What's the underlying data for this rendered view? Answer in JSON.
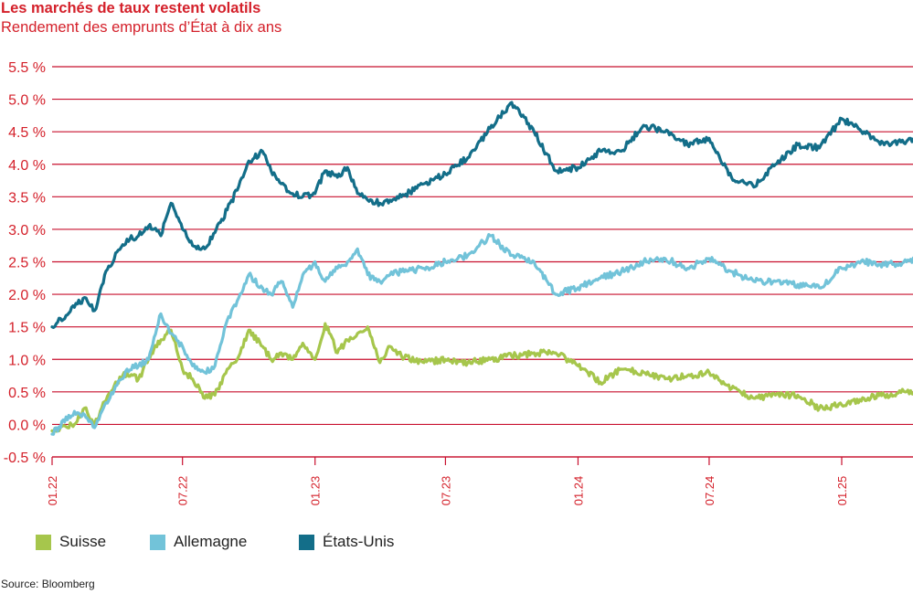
{
  "header": {
    "title": "Les marchés de taux restent volatils",
    "subtitle": "Rendement des emprunts d’État à dix ans"
  },
  "footer": {
    "source": "Source: Bloomberg"
  },
  "colors": {
    "accent": "#d4202a",
    "grid": "#c8102e",
    "suisse": "#a6c64c",
    "allemagne": "#72c3d9",
    "etats_unis": "#136e89"
  },
  "legend": [
    {
      "label": "Suisse",
      "color": "#a6c64c"
    },
    {
      "label": "Allemagne",
      "color": "#72c3d9"
    },
    {
      "label": "États-Unis",
      "color": "#136e89"
    }
  ],
  "chart_data": {
    "type": "line",
    "title": "Les marchés de taux restent volatils",
    "subtitle": "Rendement des emprunts d’État à dix ans",
    "ylabel": "",
    "xlabel": "",
    "ylim": [
      -0.5,
      5.5
    ],
    "xlim": [
      "2022-01-01",
      "2025-07-15"
    ],
    "yticks": [
      "5.5 %",
      "5.0 %",
      "4.5 %",
      "4.0 %",
      "3.5 %",
      "3.0 %",
      "2.5 %",
      "2.0 %",
      "1.5 %",
      "1.0 %",
      "0.5 %",
      "0.0 %",
      "-0.5 %"
    ],
    "ytick_values": [
      5.5,
      5.0,
      4.5,
      4.0,
      3.5,
      3.0,
      2.5,
      2.0,
      1.5,
      1.0,
      0.5,
      0.0,
      -0.5
    ],
    "xticks": [
      "01.22",
      "07.22",
      "01.23",
      "07.23",
      "01.24",
      "07.24",
      "01.25"
    ],
    "xtick_dates": [
      "2022-01-01",
      "2022-07-01",
      "2023-01-01",
      "2023-07-01",
      "2024-01-01",
      "2024-07-01",
      "2025-01-01"
    ],
    "grid": true,
    "legend_position": "bottom",
    "series": [
      {
        "name": "Suisse",
        "color": "#a6c64c",
        "x": [
          "2022-01-01",
          "2022-02-01",
          "2022-02-15",
          "2022-03-01",
          "2022-03-15",
          "2022-04-01",
          "2022-04-15",
          "2022-05-01",
          "2022-05-15",
          "2022-06-01",
          "2022-06-15",
          "2022-07-01",
          "2022-07-15",
          "2022-08-01",
          "2022-08-15",
          "2022-09-01",
          "2022-09-15",
          "2022-10-01",
          "2022-10-20",
          "2022-11-01",
          "2022-11-15",
          "2022-12-01",
          "2022-12-15",
          "2023-01-01",
          "2023-01-15",
          "2023-02-01",
          "2023-02-15",
          "2023-03-01",
          "2023-03-15",
          "2023-04-01",
          "2023-04-15",
          "2023-05-01",
          "2023-06-01",
          "2023-07-01",
          "2023-08-01",
          "2023-09-01",
          "2023-10-01",
          "2023-11-01",
          "2023-12-01",
          "2024-01-01",
          "2024-02-01",
          "2024-03-01",
          "2024-04-01",
          "2024-05-01",
          "2024-06-01",
          "2024-07-01",
          "2024-08-01",
          "2024-09-01",
          "2024-10-01",
          "2024-11-01",
          "2024-12-01",
          "2025-01-01",
          "2025-02-01",
          "2025-03-01",
          "2025-04-01",
          "2025-05-01",
          "2025-06-01",
          "2025-07-15"
        ],
        "values": [
          -0.1,
          0.0,
          0.25,
          0.0,
          0.35,
          0.65,
          0.8,
          0.7,
          1.0,
          1.3,
          1.45,
          0.85,
          0.7,
          0.4,
          0.45,
          0.85,
          1.0,
          1.45,
          1.2,
          1.0,
          1.1,
          1.0,
          1.25,
          1.0,
          1.55,
          1.1,
          1.3,
          1.4,
          1.5,
          0.95,
          1.2,
          1.05,
          0.95,
          1.0,
          0.95,
          1.0,
          1.05,
          1.1,
          1.1,
          0.9,
          0.65,
          0.85,
          0.8,
          0.7,
          0.75,
          0.8,
          0.55,
          0.4,
          0.45,
          0.45,
          0.25,
          0.3,
          0.4,
          0.45,
          0.5,
          0.45,
          0.75,
          0.6
        ]
      },
      {
        "name": "Allemagne",
        "color": "#72c3d9",
        "x": [
          "2022-01-01",
          "2022-02-01",
          "2022-02-15",
          "2022-03-01",
          "2022-03-15",
          "2022-04-01",
          "2022-04-15",
          "2022-05-01",
          "2022-05-15",
          "2022-06-01",
          "2022-06-15",
          "2022-07-01",
          "2022-07-15",
          "2022-08-01",
          "2022-08-15",
          "2022-09-01",
          "2022-09-15",
          "2022-10-01",
          "2022-10-20",
          "2022-11-01",
          "2022-11-15",
          "2022-12-01",
          "2022-12-15",
          "2023-01-01",
          "2023-01-15",
          "2023-02-01",
          "2023-02-15",
          "2023-03-01",
          "2023-03-15",
          "2023-04-01",
          "2023-04-15",
          "2023-05-01",
          "2023-06-01",
          "2023-07-01",
          "2023-08-01",
          "2023-09-01",
          "2023-10-01",
          "2023-11-01",
          "2023-12-01",
          "2024-01-01",
          "2024-02-01",
          "2024-03-01",
          "2024-04-01",
          "2024-05-01",
          "2024-06-01",
          "2024-07-01",
          "2024-08-01",
          "2024-09-01",
          "2024-10-01",
          "2024-11-01",
          "2024-12-01",
          "2025-01-01",
          "2025-02-01",
          "2025-03-01",
          "2025-04-01",
          "2025-05-01",
          "2025-06-01",
          "2025-07-15"
        ],
        "values": [
          -0.15,
          0.2,
          0.15,
          -0.05,
          0.3,
          0.6,
          0.85,
          0.9,
          1.0,
          1.7,
          1.4,
          1.2,
          0.9,
          0.8,
          0.9,
          1.6,
          1.9,
          2.3,
          2.1,
          2.0,
          2.2,
          1.8,
          2.3,
          2.5,
          2.2,
          2.4,
          2.5,
          2.7,
          2.3,
          2.2,
          2.3,
          2.35,
          2.4,
          2.5,
          2.6,
          2.9,
          2.6,
          2.5,
          2.0,
          2.1,
          2.25,
          2.35,
          2.5,
          2.55,
          2.4,
          2.55,
          2.35,
          2.2,
          2.2,
          2.15,
          2.1,
          2.4,
          2.5,
          2.45,
          2.5,
          2.55,
          2.8,
          2.7
        ]
      },
      {
        "name": "États-Unis",
        "color": "#136e89",
        "x": [
          "2022-01-01",
          "2022-02-01",
          "2022-02-15",
          "2022-03-01",
          "2022-03-15",
          "2022-04-01",
          "2022-04-15",
          "2022-05-01",
          "2022-05-15",
          "2022-06-01",
          "2022-06-15",
          "2022-07-01",
          "2022-07-15",
          "2022-08-01",
          "2022-08-15",
          "2022-09-01",
          "2022-09-15",
          "2022-10-01",
          "2022-10-20",
          "2022-11-01",
          "2022-11-15",
          "2022-12-01",
          "2022-12-15",
          "2023-01-01",
          "2023-01-15",
          "2023-02-01",
          "2023-02-15",
          "2023-03-01",
          "2023-03-15",
          "2023-04-01",
          "2023-04-15",
          "2023-05-01",
          "2023-06-01",
          "2023-07-01",
          "2023-08-01",
          "2023-09-01",
          "2023-10-01",
          "2023-11-01",
          "2023-12-01",
          "2024-01-01",
          "2024-02-01",
          "2024-03-01",
          "2024-04-01",
          "2024-05-01",
          "2024-06-01",
          "2024-07-01",
          "2024-08-01",
          "2024-09-01",
          "2024-10-01",
          "2024-11-01",
          "2024-12-01",
          "2025-01-01",
          "2025-02-01",
          "2025-03-01",
          "2025-04-01",
          "2025-05-01",
          "2025-06-01",
          "2025-07-15"
        ],
        "values": [
          1.5,
          1.8,
          1.95,
          1.75,
          2.3,
          2.65,
          2.85,
          2.9,
          3.05,
          2.9,
          3.4,
          3.0,
          2.75,
          2.7,
          2.95,
          3.3,
          3.6,
          4.05,
          4.2,
          3.9,
          3.7,
          3.55,
          3.5,
          3.55,
          3.9,
          3.8,
          3.95,
          3.55,
          3.45,
          3.4,
          3.45,
          3.5,
          3.7,
          3.85,
          4.1,
          4.55,
          4.95,
          4.5,
          3.9,
          3.95,
          4.2,
          4.2,
          4.6,
          4.5,
          4.3,
          4.4,
          3.8,
          3.65,
          4.0,
          4.3,
          4.25,
          4.7,
          4.5,
          4.3,
          4.35,
          4.45,
          4.25,
          4.2
        ]
      }
    ]
  }
}
